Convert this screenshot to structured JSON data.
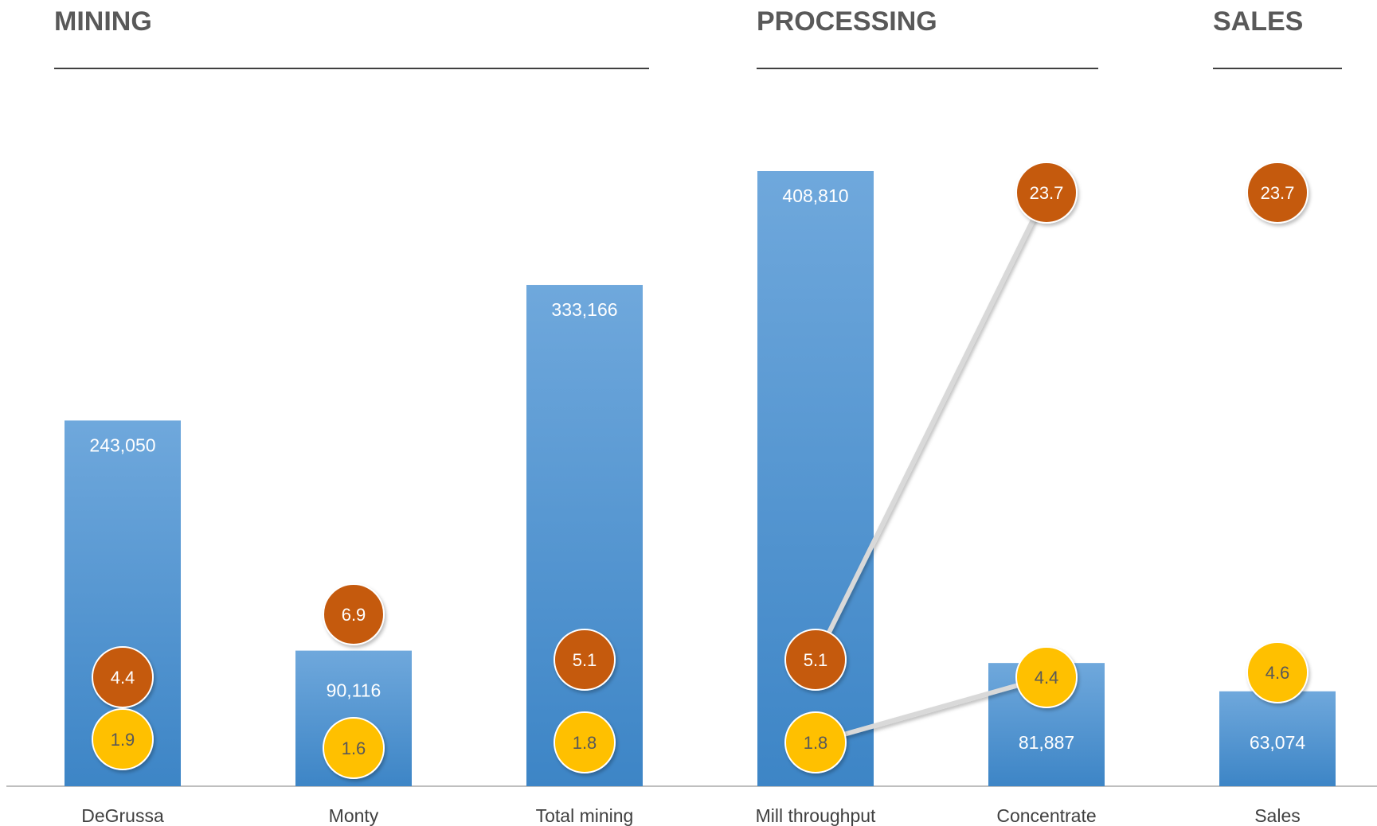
{
  "chart_data": {
    "type": "bar",
    "sections": [
      "MINING",
      "PROCESSING",
      "SALES"
    ],
    "categories": [
      "DeGrussa",
      "Monty",
      "Total mining",
      "Mill throughput",
      "Concentrate",
      "Sales"
    ],
    "values": [
      243050,
      90116,
      333166,
      408810,
      81887,
      63074
    ],
    "value_labels": [
      "243,050",
      "90,116",
      "333,166",
      "408,810",
      "81,887",
      "63,074"
    ],
    "orange_values": [
      4.4,
      6.9,
      5.1,
      5.1,
      23.7,
      23.7
    ],
    "orange_labels": [
      "4.4",
      "6.9",
      "5.1",
      "5.1",
      "23.7",
      "23.7"
    ],
    "yellow_values": [
      1.9,
      1.6,
      1.8,
      1.8,
      4.4,
      4.6
    ],
    "yellow_labels": [
      "1.9",
      "1.6",
      "1.8",
      "1.8",
      "4.4",
      "4.6"
    ],
    "colors": {
      "bar_top": "#6fa8dc",
      "bar_bottom": "#3d85c6",
      "orange": "#c55a11",
      "yellow": "#ffc000",
      "title": "#595959",
      "axis": "#bfbfbf"
    }
  }
}
